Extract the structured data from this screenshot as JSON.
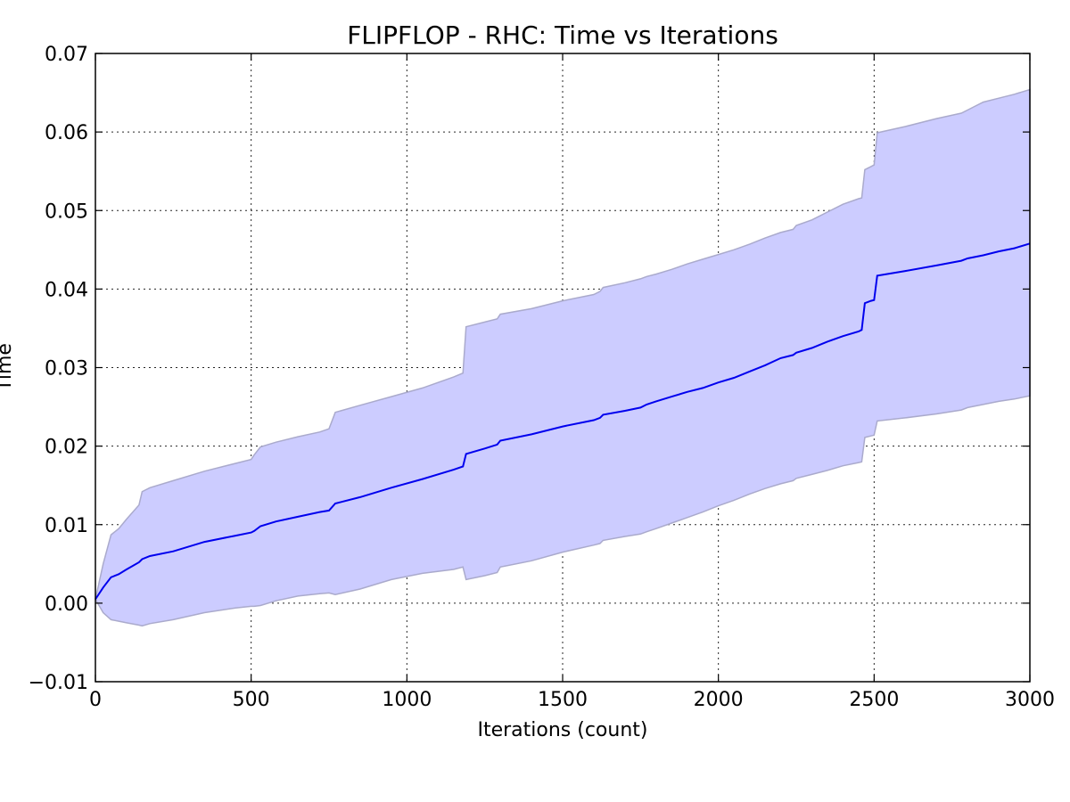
{
  "chart_data": {
    "type": "line",
    "title": "FLIPFLOP - RHC: Time vs Iterations",
    "xlabel": "Iterations (count)",
    "ylabel": "Time",
    "xlim": [
      0,
      3000
    ],
    "ylim": [
      -0.01,
      0.07
    ],
    "xticks": [
      0,
      500,
      1000,
      1500,
      2000,
      2500,
      3000
    ],
    "xtick_labels": [
      "0",
      "500",
      "1000",
      "1500",
      "2000",
      "2500",
      "3000"
    ],
    "yticks": [
      -0.01,
      0.0,
      0.01,
      0.02,
      0.03,
      0.04,
      0.05,
      0.06,
      0.07
    ],
    "ytick_labels": [
      "−0.01",
      "0.00",
      "0.01",
      "0.02",
      "0.03",
      "0.04",
      "0.05",
      "0.06",
      "0.07"
    ],
    "grid": true,
    "series": [
      {
        "name": "",
        "color": "#0000ee",
        "band_color": "#ccccff",
        "x": [
          0,
          25,
          50,
          75,
          100,
          140,
          150,
          175,
          250,
          350,
          450,
          500,
          510,
          530,
          580,
          650,
          720,
          750,
          770,
          850,
          950,
          1050,
          1150,
          1180,
          1190,
          1250,
          1290,
          1300,
          1400,
          1500,
          1600,
          1620,
          1630,
          1700,
          1750,
          1770,
          1800,
          1850,
          1900,
          1950,
          2000,
          2050,
          2100,
          2150,
          2200,
          2240,
          2250,
          2300,
          2350,
          2400,
          2450,
          2460,
          2470,
          2490,
          2500,
          2510,
          2600,
          2700,
          2780,
          2800,
          2850,
          2900,
          2950,
          3000
        ],
        "mean": [
          0.0005,
          0.002,
          0.0033,
          0.0037,
          0.0043,
          0.0052,
          0.0056,
          0.006,
          0.0066,
          0.0078,
          0.0086,
          0.009,
          0.0092,
          0.0098,
          0.0104,
          0.011,
          0.0116,
          0.0118,
          0.0127,
          0.0135,
          0.0147,
          0.0158,
          0.017,
          0.0174,
          0.019,
          0.0197,
          0.0202,
          0.0207,
          0.0215,
          0.0225,
          0.0233,
          0.0236,
          0.024,
          0.0245,
          0.0249,
          0.0253,
          0.0257,
          0.0263,
          0.0269,
          0.0274,
          0.0281,
          0.0287,
          0.0295,
          0.0303,
          0.0312,
          0.0316,
          0.0319,
          0.0325,
          0.0333,
          0.034,
          0.0346,
          0.0348,
          0.0382,
          0.0385,
          0.0386,
          0.0417,
          0.0423,
          0.043,
          0.0436,
          0.0439,
          0.0443,
          0.0448,
          0.0452,
          0.0458
        ],
        "upper": [
          0.0005,
          0.005,
          0.0087,
          0.0095,
          0.0107,
          0.0125,
          0.0142,
          0.0147,
          0.0156,
          0.0168,
          0.0178,
          0.0183,
          0.0189,
          0.0199,
          0.0205,
          0.0212,
          0.0218,
          0.0222,
          0.0243,
          0.0252,
          0.0263,
          0.0274,
          0.0288,
          0.0293,
          0.0352,
          0.0358,
          0.0362,
          0.0368,
          0.0375,
          0.0385,
          0.0393,
          0.0397,
          0.0402,
          0.0408,
          0.0413,
          0.0416,
          0.0419,
          0.0425,
          0.0432,
          0.0438,
          0.0444,
          0.045,
          0.0457,
          0.0465,
          0.0472,
          0.0476,
          0.0481,
          0.0488,
          0.0498,
          0.0508,
          0.0515,
          0.0516,
          0.0552,
          0.0556,
          0.0558,
          0.0599,
          0.0607,
          0.0617,
          0.0624,
          0.0628,
          0.0638,
          0.0643,
          0.0648,
          0.0654
        ],
        "lower": [
          0.0005,
          -0.0012,
          -0.0021,
          -0.0023,
          -0.0025,
          -0.0028,
          -0.0029,
          -0.0026,
          -0.0021,
          -0.0012,
          -0.0006,
          -0.0004,
          -0.0004,
          -0.0003,
          0.0003,
          0.0009,
          0.0012,
          0.0013,
          0.0011,
          0.0018,
          0.003,
          0.0038,
          0.0043,
          0.0046,
          0.003,
          0.0035,
          0.0039,
          0.0046,
          0.0054,
          0.0065,
          0.0074,
          0.0076,
          0.008,
          0.0085,
          0.0088,
          0.0091,
          0.0095,
          0.0102,
          0.0109,
          0.0116,
          0.0124,
          0.0131,
          0.0139,
          0.0146,
          0.0152,
          0.0156,
          0.0159,
          0.0164,
          0.0169,
          0.0175,
          0.0179,
          0.018,
          0.0211,
          0.0213,
          0.0214,
          0.0232,
          0.0236,
          0.0241,
          0.0246,
          0.0249,
          0.0253,
          0.0257,
          0.026,
          0.0264
        ]
      }
    ]
  }
}
